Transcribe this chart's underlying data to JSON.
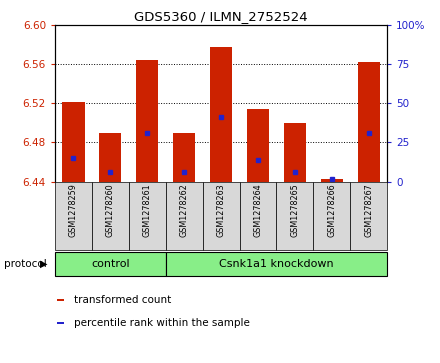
{
  "title": "GDS5360 / ILMN_2752524",
  "samples": [
    "GSM1278259",
    "GSM1278260",
    "GSM1278261",
    "GSM1278262",
    "GSM1278263",
    "GSM1278264",
    "GSM1278265",
    "GSM1278266",
    "GSM1278267"
  ],
  "bar_tops": [
    6.521,
    6.49,
    6.565,
    6.49,
    6.578,
    6.514,
    6.5,
    6.443,
    6.563
  ],
  "bar_bottom": 6.44,
  "blue_markers": [
    6.464,
    6.45,
    6.49,
    6.45,
    6.506,
    6.462,
    6.45,
    6.443,
    6.49
  ],
  "bar_color": "#cc2200",
  "blue_color": "#2222cc",
  "ylim_left": [
    6.44,
    6.6
  ],
  "ylim_right": [
    0,
    100
  ],
  "yticks_left": [
    6.44,
    6.48,
    6.52,
    6.56,
    6.6
  ],
  "yticks_right": [
    0,
    25,
    50,
    75,
    100
  ],
  "protocol_groups": [
    {
      "label": "control",
      "start": 0,
      "end": 2
    },
    {
      "label": "Csnk1a1 knockdown",
      "start": 3,
      "end": 8
    }
  ],
  "legend_items": [
    {
      "label": "transformed count",
      "color": "#cc2200"
    },
    {
      "label": "percentile rank within the sample",
      "color": "#2222cc"
    }
  ],
  "bar_width": 0.6,
  "protocol_label": "protocol",
  "font_color_left": "#cc2200",
  "font_color_right": "#2222cc",
  "green_color": "#88ee88",
  "gray_color": "#d8d8d8"
}
